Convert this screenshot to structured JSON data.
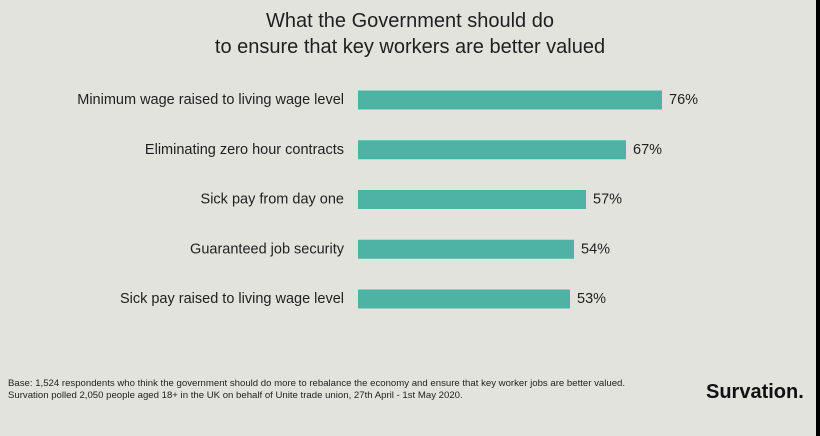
{
  "chart_data": {
    "type": "bar",
    "orientation": "horizontal",
    "title": "What the Government should do to ensure that key workers are better valued",
    "title_lines": [
      "What the Government should do",
      "to ensure that key workers are better valued"
    ],
    "categories": [
      "Minimum wage raised to living wage level",
      "Eliminating zero hour contracts",
      "Sick pay from day one",
      "Guaranteed job security",
      "Sick pay raised to living wage level"
    ],
    "values": [
      76,
      67,
      57,
      54,
      53
    ],
    "value_labels": [
      "76%",
      "67%",
      "57%",
      "54%",
      "53%"
    ],
    "unit": "%",
    "xlim": [
      0,
      80
    ],
    "grid": false,
    "legend": "none",
    "bar_color": "#4db3a5",
    "background_color": "#e3e3de"
  },
  "footer": {
    "base_note": "Base: 1,524 respondents who think the government should do more to rebalance the economy and ensure that key worker jobs are better valued.",
    "poll_note": "Survation polled 2,050 people aged 18+ in the UK on behalf of Unite trade union,  27th April  - 1st May 2020."
  },
  "brand": {
    "name": "Survation."
  }
}
